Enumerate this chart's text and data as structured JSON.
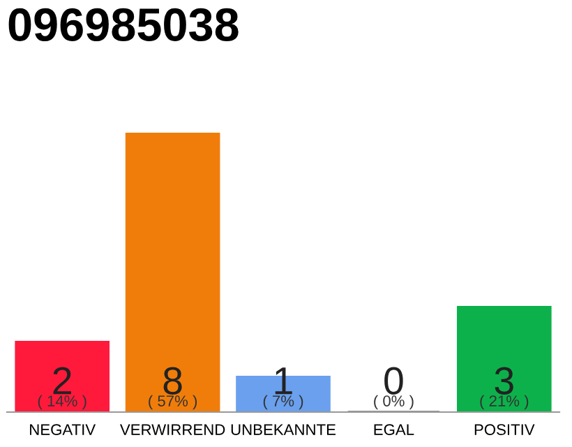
{
  "chart_data": {
    "type": "bar",
    "title": "096985038",
    "categories": [
      "NEGATIV",
      "VERWIRREND",
      "UNBEKANNTE",
      "EGAL",
      "POSITIV"
    ],
    "values": [
      2,
      8,
      1,
      0,
      3
    ],
    "colors": [
      "#ff1a3c",
      "#f07d0a",
      "#6aa0ee",
      "#999999",
      "#0db14b"
    ],
    "value_labels": [
      "2",
      "8",
      "1",
      "0",
      "3"
    ],
    "annotations": [
      "( 14% )",
      "( 57% )",
      "( 7% )",
      "( 0% )",
      "( 21% )"
    ],
    "grid": false,
    "legend": false
  }
}
